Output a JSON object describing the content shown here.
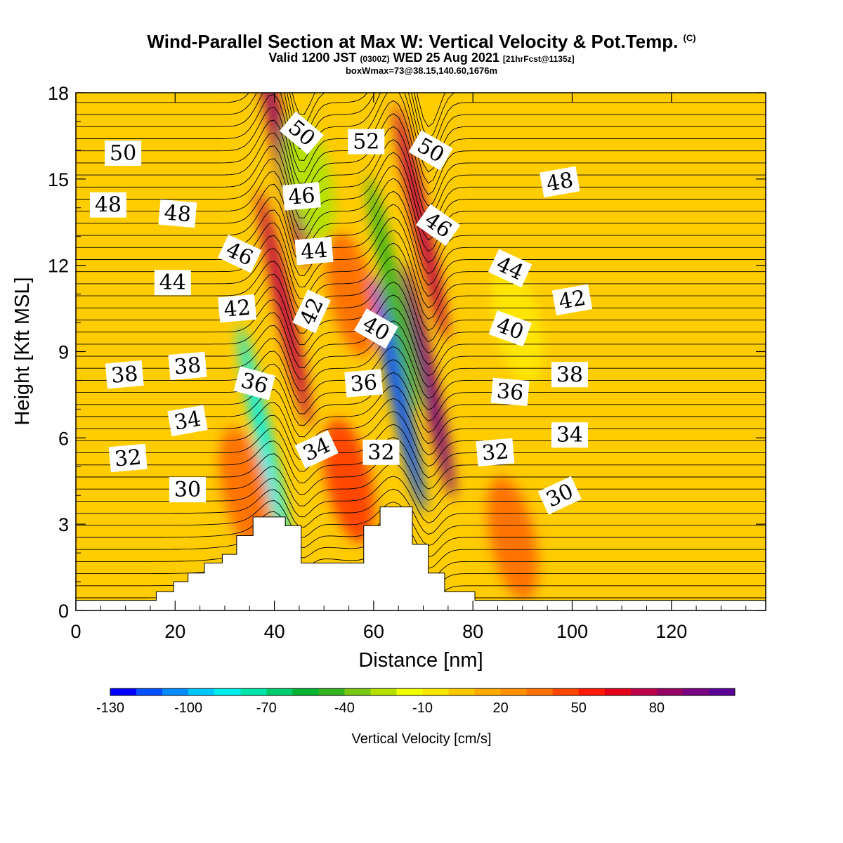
{
  "header": {
    "title": "Wind-Parallel Section at Max W: Vertical Velocity & Pot.Temp.",
    "title_mark": "(C)",
    "valid_prefix": "Valid 1200 JST",
    "valid_z": "(0300Z)",
    "valid_date": "WED 25 Aug 2021",
    "valid_fcst": "[21hrFcst@1135z]",
    "box_info": "boxWmax=73@38.15,140.60,1676m"
  },
  "chart_data": {
    "type": "heatmap",
    "title": "Wind-Parallel Section at Max W: Vertical Velocity & Pot.Temp.",
    "xlabel": "Distance [nm]",
    "ylabel": "Height [Kft MSL]",
    "xlim": [
      0,
      139
    ],
    "ylim": [
      0,
      18
    ],
    "x_ticks": [
      0,
      20,
      40,
      60,
      80,
      100,
      120
    ],
    "y_ticks": [
      0,
      3,
      6,
      9,
      12,
      15,
      18
    ],
    "colorbar": {
      "label": "Vertical Velocity [cm/s]",
      "tick_labels": [
        "-130",
        "-100",
        "-70",
        "-40",
        "-10",
        "20",
        "50",
        "80"
      ],
      "colors": [
        "#0000ff",
        "#0050ff",
        "#008cff",
        "#00c8ff",
        "#00f0f0",
        "#00e6aa",
        "#00cd6e",
        "#00b432",
        "#32b41e",
        "#78c814",
        "#b4e100",
        "#f0ff00",
        "#ffe600",
        "#ffc800",
        "#ffaa00",
        "#ff9100",
        "#ff7300",
        "#ff4600",
        "#ff1900",
        "#e60019",
        "#be0046",
        "#960064",
        "#780082",
        "#5a0096"
      ]
    },
    "background_color": "#ffcc00",
    "terrain": [
      [
        0,
        0.35
      ],
      [
        16.2,
        0.35
      ],
      [
        16.2,
        0.65
      ],
      [
        19.7,
        0.65
      ],
      [
        19.7,
        1.0
      ],
      [
        22.6,
        1.0
      ],
      [
        22.6,
        1.3
      ],
      [
        25.9,
        1.3
      ],
      [
        25.9,
        1.65
      ],
      [
        29.5,
        1.65
      ],
      [
        29.5,
        1.95
      ],
      [
        32.4,
        1.95
      ],
      [
        32.4,
        2.6
      ],
      [
        35.7,
        2.6
      ],
      [
        35.7,
        3.25
      ],
      [
        42.2,
        3.25
      ],
      [
        42.2,
        2.95
      ],
      [
        45.4,
        2.95
      ],
      [
        45.4,
        1.65
      ],
      [
        58,
        1.65
      ],
      [
        58,
        2.95
      ],
      [
        61.3,
        2.95
      ],
      [
        61.3,
        3.6
      ],
      [
        67.8,
        3.6
      ],
      [
        67.8,
        2.3
      ],
      [
        71,
        2.3
      ],
      [
        71,
        1.3
      ],
      [
        74.3,
        1.3
      ],
      [
        74.3,
        0.65
      ],
      [
        80.4,
        0.65
      ],
      [
        80.4,
        0.35
      ],
      [
        139,
        0.35
      ]
    ],
    "w_features": [
      {
        "x": 38,
        "y": 5.8,
        "value": -100
      },
      {
        "x": 42,
        "y": 10.5,
        "value": 60
      },
      {
        "x": 41.5,
        "y": 16,
        "value": 70
      },
      {
        "x": 47,
        "y": 15,
        "value": -40
      },
      {
        "x": 65,
        "y": 7.5,
        "value": -130
      },
      {
        "x": 64,
        "y": 11,
        "value": -60
      },
      {
        "x": 71,
        "y": 8,
        "value": 80
      },
      {
        "x": 69.5,
        "y": 13.5,
        "value": 60
      },
      {
        "x": 55,
        "y": 4.5,
        "value": 30
      },
      {
        "x": 34,
        "y": 4.2,
        "value": 25
      },
      {
        "x": 88,
        "y": 2.5,
        "value": 20
      },
      {
        "x": 55.5,
        "y": 11,
        "value": 20
      },
      {
        "x": 89,
        "y": 10,
        "value": -20
      }
    ],
    "theta_labels": [
      {
        "value": "50",
        "x": 9.5,
        "y": 15.9,
        "angle": 0
      },
      {
        "value": "48",
        "x": 6.5,
        "y": 14.1,
        "angle": 0
      },
      {
        "value": "48",
        "x": 20.5,
        "y": 13.8,
        "angle": 5
      },
      {
        "value": "50",
        "x": 45.5,
        "y": 16.6,
        "angle": 40
      },
      {
        "value": "52",
        "x": 58.5,
        "y": 16.3,
        "angle": 0
      },
      {
        "value": "50",
        "x": 71.5,
        "y": 16.0,
        "angle": 30
      },
      {
        "value": "46",
        "x": 45.5,
        "y": 14.4,
        "angle": -5
      },
      {
        "value": "46",
        "x": 73,
        "y": 13.4,
        "angle": 35
      },
      {
        "value": "48",
        "x": 97.5,
        "y": 14.9,
        "angle": -10
      },
      {
        "value": "46",
        "x": 33,
        "y": 12.4,
        "angle": 25
      },
      {
        "value": "44",
        "x": 48,
        "y": 12.5,
        "angle": -5
      },
      {
        "value": "44",
        "x": 19.5,
        "y": 11.4,
        "angle": 0
      },
      {
        "value": "44",
        "x": 87.5,
        "y": 11.9,
        "angle": 25
      },
      {
        "value": "42",
        "x": 32.5,
        "y": 10.5,
        "angle": -5
      },
      {
        "value": "42",
        "x": 47.5,
        "y": 10.4,
        "angle": -65
      },
      {
        "value": "42",
        "x": 100,
        "y": 10.8,
        "angle": -10
      },
      {
        "value": "40",
        "x": 60.5,
        "y": 9.8,
        "angle": 30
      },
      {
        "value": "40",
        "x": 87.5,
        "y": 9.8,
        "angle": 20
      },
      {
        "value": "38",
        "x": 9.8,
        "y": 8.2,
        "angle": -5
      },
      {
        "value": "38",
        "x": 22.5,
        "y": 8.5,
        "angle": -5
      },
      {
        "value": "38",
        "x": 99.5,
        "y": 8.2,
        "angle": 0
      },
      {
        "value": "36",
        "x": 36,
        "y": 7.9,
        "angle": 15
      },
      {
        "value": "36",
        "x": 58,
        "y": 7.9,
        "angle": -5
      },
      {
        "value": "36",
        "x": 87.5,
        "y": 7.6,
        "angle": 5
      },
      {
        "value": "34",
        "x": 22.5,
        "y": 6.6,
        "angle": -10
      },
      {
        "value": "34",
        "x": 48.5,
        "y": 5.6,
        "angle": -25
      },
      {
        "value": "34",
        "x": 99.5,
        "y": 6.1,
        "angle": 0
      },
      {
        "value": "32",
        "x": 10.5,
        "y": 5.3,
        "angle": -5
      },
      {
        "value": "32",
        "x": 61.5,
        "y": 5.5,
        "angle": 0
      },
      {
        "value": "32",
        "x": 84.5,
        "y": 5.5,
        "angle": -5
      },
      {
        "value": "30",
        "x": 22.5,
        "y": 4.2,
        "angle": 0
      },
      {
        "value": "30",
        "x": 97.5,
        "y": 4.0,
        "angle": -25
      }
    ]
  }
}
